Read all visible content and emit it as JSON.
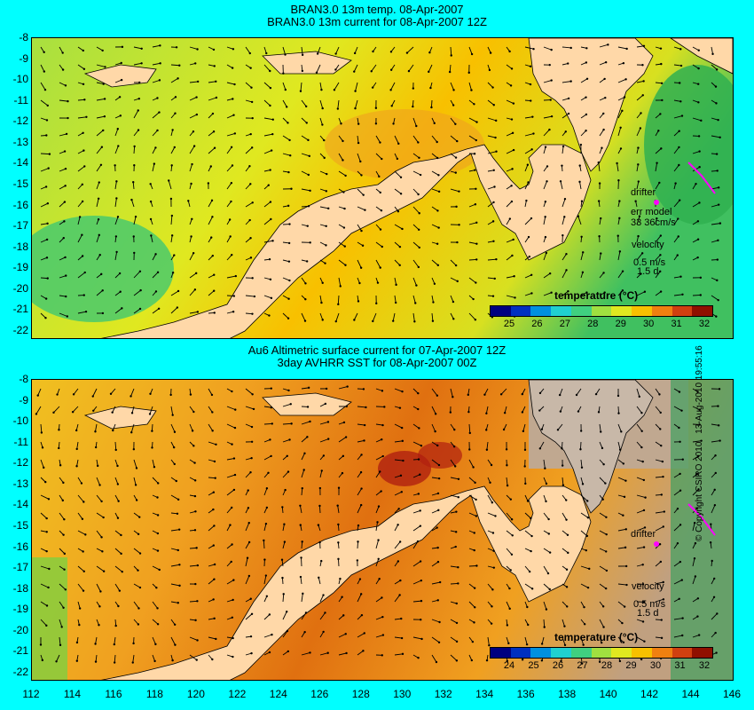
{
  "top_panel": {
    "title_line1": "BRAN3.0 13m temp. 08-Apr-2007",
    "title_line2": "BRAN3.0 13m current for 08-Apr-2007 12Z",
    "colorbar_title": "temperature (°C)",
    "colorbar_labels": [
      "25",
      "26",
      "27",
      "28",
      "29",
      "30",
      "31",
      "32"
    ],
    "drifter_label": "drifter",
    "err_model_label": "err model",
    "err_model_value": "33 36cm/s",
    "velocity_label": "velocity",
    "velocity_scale": "0.5 m/s",
    "velocity_time": "1.5 d"
  },
  "bottom_panel": {
    "title_line1": "Au6 Altimetric surface current for 07-Apr-2007 12Z",
    "title_line2": "3day AVHRR SST for 08-Apr-2007 00Z",
    "colorbar_title": "temperature (°C)",
    "colorbar_labels": [
      "24",
      "25",
      "26",
      "27",
      "28",
      "29",
      "30",
      "31",
      "32"
    ],
    "drifter_label": "drifter",
    "velocity_label": "velocity",
    "velocity_scale": "0.5 m/s",
    "velocity_time": "1.5 d"
  },
  "y_ticks": [
    "-8",
    "-9",
    "-10",
    "-11",
    "-12",
    "-13",
    "-14",
    "-15",
    "-16",
    "-17",
    "-18",
    "-19",
    "-20",
    "-21",
    "-22"
  ],
  "x_ticks": [
    "112",
    "114",
    "116",
    "118",
    "120",
    "122",
    "124",
    "126",
    "128",
    "130",
    "132",
    "134",
    "136",
    "138",
    "140",
    "142",
    "144",
    "146"
  ],
  "copyright": "© Copyright CSIRO 2010",
  "timestamp": "13-Aug-2010 19:55:16",
  "colors": {
    "background": "#00ffff",
    "land": "#ffd8a8",
    "colormap": [
      "#000080",
      "#0030c0",
      "#0090e0",
      "#20d0d0",
      "#40d080",
      "#a0e040",
      "#e0e820",
      "#f8c000",
      "#f08010",
      "#d04010",
      "#901000"
    ]
  }
}
